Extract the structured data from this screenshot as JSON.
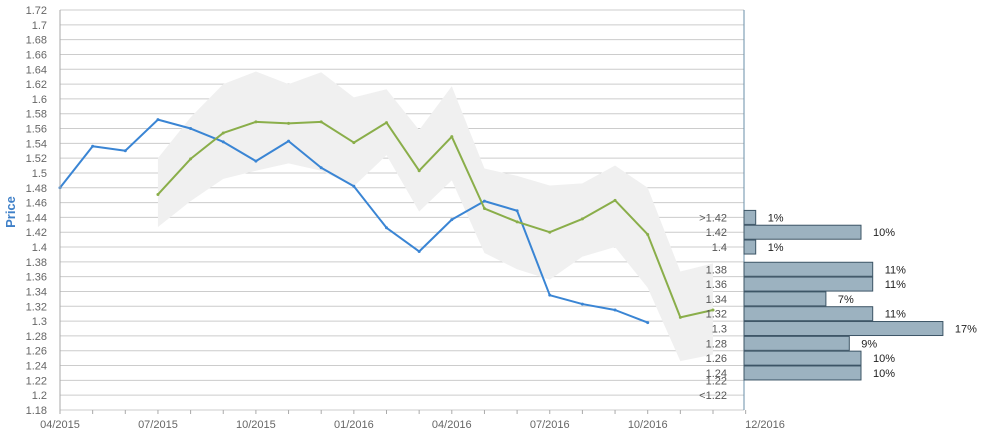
{
  "chart_data": {
    "type": "line",
    "ylabel": "Price",
    "xlabel": "",
    "ylim": [
      1.18,
      1.72
    ],
    "y_ticks": [
      "1.18",
      "1.2",
      "1.22",
      "1.24",
      "1.26",
      "1.28",
      "1.3",
      "1.32",
      "1.34",
      "1.36",
      "1.38",
      "1.4",
      "1.42",
      "1.44",
      "1.46",
      "1.48",
      "1.5",
      "1.52",
      "1.54",
      "1.56",
      "1.58",
      "1.6",
      "1.62",
      "1.64",
      "1.66",
      "1.68",
      "1.7",
      "1.72"
    ],
    "x_tick_labels": [
      "04/2015",
      "07/2015",
      "10/2015",
      "01/2016",
      "04/2016",
      "07/2016",
      "10/2016",
      "12/2016"
    ],
    "grid": true,
    "colors": {
      "actual": "#3a85d4",
      "forecast": "#8aae4a",
      "band": "#f0f0f0",
      "dist_bar": "#9cb2c0",
      "dist_bar_border": "#3d5566",
      "grid": "#cccccc"
    },
    "series": [
      {
        "key": "actual",
        "values": [
          {
            "x": "2015-04",
            "y": 1.48
          },
          {
            "x": "2015-05",
            "y": 1.536
          },
          {
            "x": "2015-06",
            "y": 1.53
          },
          {
            "x": "2015-07",
            "y": 1.572
          },
          {
            "x": "2015-08",
            "y": 1.56
          },
          {
            "x": "2015-09",
            "y": 1.542
          },
          {
            "x": "2015-10",
            "y": 1.516
          },
          {
            "x": "2015-11",
            "y": 1.543
          },
          {
            "x": "2015-12",
            "y": 1.507
          },
          {
            "x": "2016-01",
            "y": 1.482
          },
          {
            "x": "2016-02",
            "y": 1.426
          },
          {
            "x": "2016-03",
            "y": 1.394
          },
          {
            "x": "2016-04",
            "y": 1.437
          },
          {
            "x": "2016-05",
            "y": 1.462
          },
          {
            "x": "2016-06",
            "y": 1.449
          },
          {
            "x": "2016-07",
            "y": 1.335
          },
          {
            "x": "2016-08",
            "y": 1.323
          },
          {
            "x": "2016-09",
            "y": 1.315
          },
          {
            "x": "2016-10",
            "y": 1.298
          }
        ]
      },
      {
        "key": "forecast",
        "values": [
          {
            "x": "2015-07",
            "y": 1.471
          },
          {
            "x": "2015-08",
            "y": 1.519
          },
          {
            "x": "2015-09",
            "y": 1.554
          },
          {
            "x": "2015-10",
            "y": 1.569
          },
          {
            "x": "2015-11",
            "y": 1.567
          },
          {
            "x": "2015-12",
            "y": 1.569
          },
          {
            "x": "2016-01",
            "y": 1.541
          },
          {
            "x": "2016-02",
            "y": 1.568
          },
          {
            "x": "2016-03",
            "y": 1.503
          },
          {
            "x": "2016-04",
            "y": 1.549
          },
          {
            "x": "2016-05",
            "y": 1.452
          },
          {
            "x": "2016-06",
            "y": 1.434
          },
          {
            "x": "2016-07",
            "y": 1.42
          },
          {
            "x": "2016-08",
            "y": 1.438
          },
          {
            "x": "2016-09",
            "y": 1.463
          },
          {
            "x": "2016-10",
            "y": 1.417
          },
          {
            "x": "2016-11",
            "y": 1.305
          },
          {
            "x": "2016-12",
            "y": 1.315
          }
        ]
      }
    ],
    "band": [
      {
        "x": "2015-07",
        "upper": 1.52,
        "lower": 1.427
      },
      {
        "x": "2015-08",
        "upper": 1.575,
        "lower": 1.462
      },
      {
        "x": "2015-09",
        "upper": 1.62,
        "lower": 1.492
      },
      {
        "x": "2015-10",
        "upper": 1.637,
        "lower": 1.503
      },
      {
        "x": "2015-11",
        "upper": 1.62,
        "lower": 1.513
      },
      {
        "x": "2015-12",
        "upper": 1.636,
        "lower": 1.503
      },
      {
        "x": "2016-01",
        "upper": 1.602,
        "lower": 1.482
      },
      {
        "x": "2016-02",
        "upper": 1.613,
        "lower": 1.524
      },
      {
        "x": "2016-03",
        "upper": 1.558,
        "lower": 1.448
      },
      {
        "x": "2016-04",
        "upper": 1.617,
        "lower": 1.49
      },
      {
        "x": "2016-05",
        "upper": 1.506,
        "lower": 1.392
      },
      {
        "x": "2016-06",
        "upper": 1.496,
        "lower": 1.37
      },
      {
        "x": "2016-07",
        "upper": 1.483,
        "lower": 1.356
      },
      {
        "x": "2016-08",
        "upper": 1.486,
        "lower": 1.387
      },
      {
        "x": "2016-09",
        "upper": 1.51,
        "lower": 1.4
      },
      {
        "x": "2016-10",
        "upper": 1.48,
        "lower": 1.345
      },
      {
        "x": "2016-11",
        "upper": 1.367,
        "lower": 1.246
      },
      {
        "x": "2016-12",
        "upper": 1.378,
        "lower": 1.255
      }
    ],
    "distribution": {
      "bins": [
        {
          "label": ">1.42",
          "center": 1.44,
          "pct": 1,
          "text": "1%"
        },
        {
          "label": "1.42",
          "center": 1.42,
          "pct": 10,
          "text": "10%"
        },
        {
          "label": "1.4",
          "center": 1.4,
          "pct": 1,
          "text": "1%"
        },
        {
          "label": "1.38",
          "center": 1.37,
          "pct": 11,
          "text": "11%"
        },
        {
          "label": "1.36",
          "center": 1.35,
          "pct": 11,
          "text": "11%"
        },
        {
          "label": "1.34",
          "center": 1.33,
          "pct": 7,
          "text": "7%"
        },
        {
          "label": "1.32",
          "center": 1.31,
          "pct": 11,
          "text": "11%"
        },
        {
          "label": "1.3",
          "center": 1.29,
          "pct": 17,
          "text": "17%"
        },
        {
          "label": "1.28",
          "center": 1.27,
          "pct": 9,
          "text": "9%"
        },
        {
          "label": "1.26",
          "center": 1.25,
          "pct": 10,
          "text": "10%"
        },
        {
          "label": "1.24",
          "center": 1.23,
          "pct": 10,
          "text": "10%"
        },
        {
          "label": "1.22",
          "center": 1.22,
          "pct": 0,
          "text": ""
        },
        {
          "label": "<1.22",
          "center": 1.2,
          "pct": 0,
          "text": ""
        }
      ]
    }
  }
}
